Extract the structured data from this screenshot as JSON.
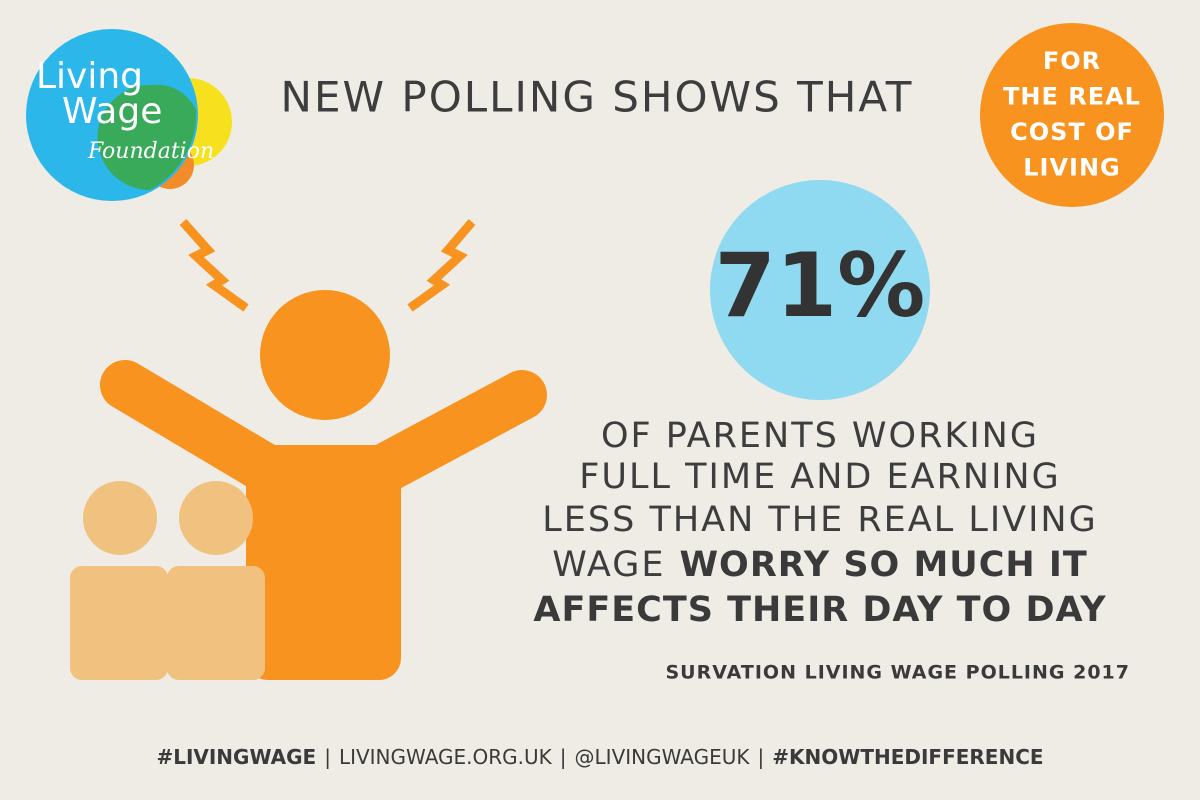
{
  "logo": {
    "line1": "Living",
    "line2": "Wage",
    "line3": "Foundation"
  },
  "headline": "NEW POLLING SHOWS THAT",
  "badge": {
    "lines": [
      "FOR",
      "THE REAL",
      "COST OF",
      "LIVING"
    ]
  },
  "statistic": "71%",
  "statement": {
    "plain": [
      "OF PARENTS WORKING",
      "FULL TIME AND EARNING",
      "LESS THAN THE REAL LIVING",
      "WAGE"
    ],
    "emphasis": [
      "WORRY SO MUCH IT",
      "AFFECTS THEIR DAY TO DAY"
    ]
  },
  "source": "SURVATION LIVING WAGE POLLING 2017",
  "footer": {
    "items": [
      "#LIVINGWAGE",
      "LIVINGWAGE.ORG.UK",
      "@LIVINGWAGEUK",
      "#KNOWTHEDIFFERENCE"
    ],
    "separator": "|"
  }
}
